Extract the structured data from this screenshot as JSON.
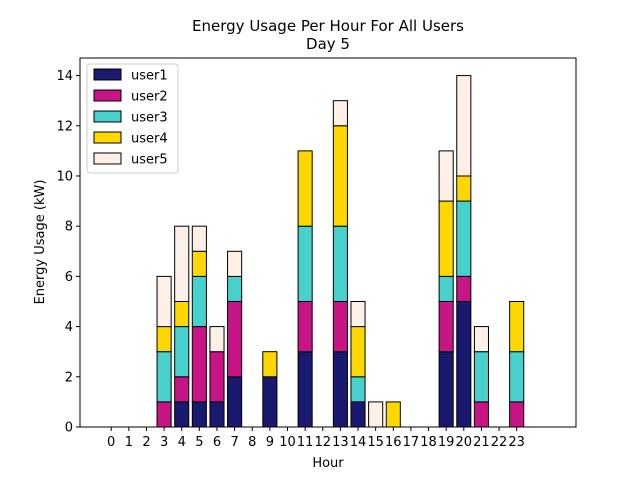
{
  "chart_data": {
    "type": "bar",
    "stacked": true,
    "title": "Energy Usage Per Hour For All Users",
    "subtitle": "Day 5",
    "xlabel": "Hour",
    "ylabel": "Energy Usage (kW)",
    "ylim": [
      0,
      14.7
    ],
    "yticks": [
      0,
      2,
      4,
      6,
      8,
      10,
      12,
      14
    ],
    "grid": false,
    "legend_position": "upper-left",
    "categories": [
      "0",
      "1",
      "2",
      "3",
      "4",
      "5",
      "6",
      "7",
      "8",
      "9",
      "10",
      "11",
      "12",
      "13",
      "14",
      "15",
      "16",
      "17",
      "18",
      "19",
      "20",
      "21",
      "22",
      "23"
    ],
    "series": [
      {
        "name": "user1",
        "color": "#191970",
        "values": [
          0,
          0,
          0,
          0,
          1,
          1,
          1,
          2,
          0,
          2,
          0,
          3,
          0,
          3,
          1,
          0,
          0,
          0,
          0,
          3,
          5,
          0,
          0,
          0
        ]
      },
      {
        "name": "user2",
        "color": "#c71585",
        "values": [
          0,
          0,
          0,
          1,
          1,
          3,
          2,
          3,
          0,
          0,
          0,
          2,
          0,
          2,
          0,
          0,
          0,
          0,
          0,
          2,
          1,
          1,
          0,
          1
        ]
      },
      {
        "name": "user3",
        "color": "#48d1cc",
        "values": [
          0,
          0,
          0,
          2,
          2,
          2,
          0,
          1,
          0,
          0,
          0,
          3,
          0,
          3,
          1,
          0,
          0,
          0,
          0,
          1,
          3,
          2,
          0,
          2
        ]
      },
      {
        "name": "user4",
        "color": "#ffd700",
        "values": [
          0,
          0,
          0,
          1,
          1,
          1,
          0,
          0,
          0,
          1,
          0,
          3,
          0,
          4,
          2,
          0,
          1,
          0,
          0,
          3,
          1,
          0,
          0,
          2
        ]
      },
      {
        "name": "user5",
        "color": "#fdf0e6",
        "values": [
          0,
          0,
          0,
          2,
          3,
          1,
          1,
          1,
          0,
          0,
          0,
          0,
          0,
          1,
          1,
          1,
          0,
          0,
          0,
          2,
          4,
          1,
          0,
          0
        ]
      }
    ]
  }
}
